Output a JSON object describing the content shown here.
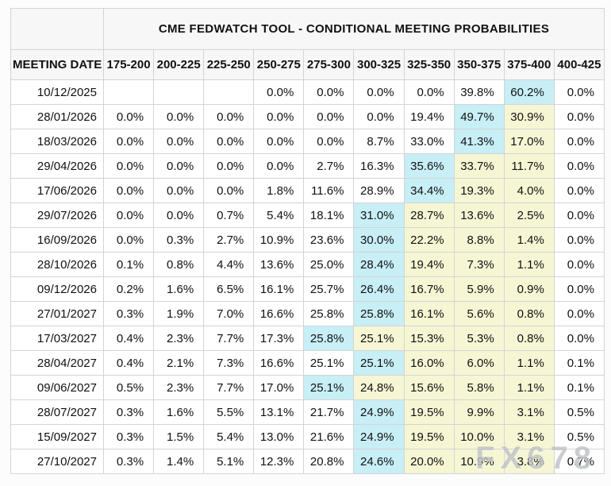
{
  "table": {
    "title": "CME FEDWATCH TOOL - CONDITIONAL MEETING PROBABILITIES",
    "columns": [
      "MEETING DATE",
      "175-200",
      "200-225",
      "225-250",
      "250-275",
      "275-300",
      "300-325",
      "325-350",
      "350-375",
      "375-400",
      "400-425"
    ],
    "rows": [
      {
        "date": "10/12/2025",
        "values": [
          "",
          "",
          "",
          "0.0%",
          "0.0%",
          "0.0%",
          "0.0%",
          "39.8%",
          "60.2%",
          "0.0%"
        ],
        "highlights": [
          "",
          "",
          "",
          "",
          "",
          "",
          "",
          "",
          "c",
          ""
        ]
      },
      {
        "date": "28/01/2026",
        "values": [
          "0.0%",
          "0.0%",
          "0.0%",
          "0.0%",
          "0.0%",
          "0.0%",
          "19.4%",
          "49.7%",
          "30.9%",
          "0.0%"
        ],
        "highlights": [
          "",
          "",
          "",
          "",
          "",
          "",
          "",
          "c",
          "y",
          ""
        ]
      },
      {
        "date": "18/03/2026",
        "values": [
          "0.0%",
          "0.0%",
          "0.0%",
          "0.0%",
          "0.0%",
          "8.7%",
          "33.0%",
          "41.3%",
          "17.0%",
          "0.0%"
        ],
        "highlights": [
          "",
          "",
          "",
          "",
          "",
          "",
          "",
          "c",
          "y",
          ""
        ]
      },
      {
        "date": "29/04/2026",
        "values": [
          "0.0%",
          "0.0%",
          "0.0%",
          "0.0%",
          "2.7%",
          "16.3%",
          "35.6%",
          "33.7%",
          "11.7%",
          "0.0%"
        ],
        "highlights": [
          "",
          "",
          "",
          "",
          "",
          "",
          "c",
          "y",
          "y",
          ""
        ]
      },
      {
        "date": "17/06/2026",
        "values": [
          "0.0%",
          "0.0%",
          "0.0%",
          "1.8%",
          "11.6%",
          "28.9%",
          "34.4%",
          "19.3%",
          "4.0%",
          "0.0%"
        ],
        "highlights": [
          "",
          "",
          "",
          "",
          "",
          "",
          "c",
          "y",
          "y",
          ""
        ]
      },
      {
        "date": "29/07/2026",
        "values": [
          "0.0%",
          "0.0%",
          "0.7%",
          "5.4%",
          "18.1%",
          "31.0%",
          "28.7%",
          "13.6%",
          "2.5%",
          "0.0%"
        ],
        "highlights": [
          "",
          "",
          "",
          "",
          "",
          "c",
          "y",
          "y",
          "y",
          ""
        ]
      },
      {
        "date": "16/09/2026",
        "values": [
          "0.0%",
          "0.3%",
          "2.7%",
          "10.9%",
          "23.6%",
          "30.0%",
          "22.2%",
          "8.8%",
          "1.4%",
          "0.0%"
        ],
        "highlights": [
          "",
          "",
          "",
          "",
          "",
          "c",
          "y",
          "y",
          "y",
          ""
        ]
      },
      {
        "date": "28/10/2026",
        "values": [
          "0.1%",
          "0.8%",
          "4.4%",
          "13.6%",
          "25.0%",
          "28.4%",
          "19.4%",
          "7.3%",
          "1.1%",
          "0.0%"
        ],
        "highlights": [
          "",
          "",
          "",
          "",
          "",
          "c",
          "y",
          "y",
          "y",
          ""
        ]
      },
      {
        "date": "09/12/2026",
        "values": [
          "0.2%",
          "1.6%",
          "6.5%",
          "16.1%",
          "25.7%",
          "26.4%",
          "16.7%",
          "5.9%",
          "0.9%",
          "0.0%"
        ],
        "highlights": [
          "",
          "",
          "",
          "",
          "",
          "c",
          "y",
          "y",
          "y",
          ""
        ]
      },
      {
        "date": "27/01/2027",
        "values": [
          "0.3%",
          "1.9%",
          "7.0%",
          "16.6%",
          "25.8%",
          "25.8%",
          "16.1%",
          "5.6%",
          "0.8%",
          "0.0%"
        ],
        "highlights": [
          "",
          "",
          "",
          "",
          "",
          "c",
          "y",
          "y",
          "y",
          ""
        ]
      },
      {
        "date": "17/03/2027",
        "values": [
          "0.4%",
          "2.3%",
          "7.7%",
          "17.3%",
          "25.8%",
          "25.1%",
          "15.3%",
          "5.3%",
          "0.8%",
          "0.0%"
        ],
        "highlights": [
          "",
          "",
          "",
          "",
          "c",
          "y",
          "y",
          "y",
          "y",
          ""
        ]
      },
      {
        "date": "28/04/2027",
        "values": [
          "0.4%",
          "2.1%",
          "7.3%",
          "16.6%",
          "25.1%",
          "25.1%",
          "16.0%",
          "6.0%",
          "1.1%",
          "0.1%"
        ],
        "highlights": [
          "",
          "",
          "",
          "",
          "",
          "c",
          "y",
          "y",
          "y",
          ""
        ]
      },
      {
        "date": "09/06/2027",
        "values": [
          "0.5%",
          "2.3%",
          "7.7%",
          "17.0%",
          "25.1%",
          "24.8%",
          "15.6%",
          "5.8%",
          "1.1%",
          "0.1%"
        ],
        "highlights": [
          "",
          "",
          "",
          "",
          "c",
          "y",
          "y",
          "y",
          "y",
          ""
        ]
      },
      {
        "date": "28/07/2027",
        "values": [
          "0.3%",
          "1.6%",
          "5.5%",
          "13.1%",
          "21.7%",
          "24.9%",
          "19.5%",
          "9.9%",
          "3.1%",
          "0.5%"
        ],
        "highlights": [
          "",
          "",
          "",
          "",
          "",
          "c",
          "y",
          "y",
          "y",
          ""
        ]
      },
      {
        "date": "15/09/2027",
        "values": [
          "0.3%",
          "1.5%",
          "5.4%",
          "13.0%",
          "21.6%",
          "24.9%",
          "19.5%",
          "10.0%",
          "3.1%",
          "0.5%"
        ],
        "highlights": [
          "",
          "",
          "",
          "",
          "",
          "c",
          "y",
          "y",
          "y",
          ""
        ]
      },
      {
        "date": "27/10/2027",
        "values": [
          "0.3%",
          "1.4%",
          "5.1%",
          "12.3%",
          "20.8%",
          "24.6%",
          "20.0%",
          "10.9%",
          "3.8%",
          "0.7%"
        ],
        "highlights": [
          "",
          "",
          "",
          "",
          "",
          "c",
          "y",
          "y",
          "y",
          ""
        ]
      }
    ]
  },
  "watermark": {
    "text": "FX678"
  },
  "colors": {
    "highlight_max": "#c8eef6",
    "highlight_range": "#f6f6d5",
    "header_bg": "#f7f7f7",
    "border": "#d4d4d4",
    "text": "#111111",
    "page_bg": "#fcfcfc"
  }
}
